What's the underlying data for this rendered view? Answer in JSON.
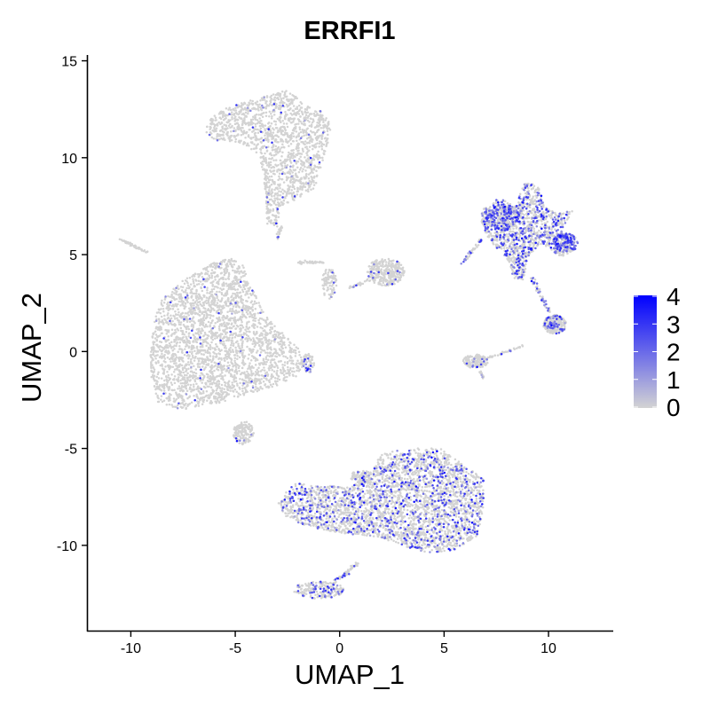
{
  "chart_data": {
    "type": "scatter",
    "title": "ERRFI1",
    "xlabel": "UMAP_1",
    "ylabel": "UMAP_2",
    "xlim": [
      -12.1,
      13.1
    ],
    "ylim": [
      -14.4,
      15.3
    ],
    "xticks": [
      -10,
      -5,
      0,
      5,
      10
    ],
    "yticks": [
      -10,
      -5,
      0,
      5,
      10,
      15
    ],
    "grid": false,
    "legend": {
      "position": "right",
      "title": "",
      "colors": {
        "low": "#d3d3d3",
        "high": "#0000ff"
      },
      "range": [
        0,
        4
      ],
      "ticks": [
        0,
        1,
        2,
        3,
        4
      ]
    },
    "clusters": [
      {
        "shape": "poly",
        "pts": [
          [
            -6.3,
            12.0
          ],
          [
            -6.4,
            11.2
          ],
          [
            -5.9,
            10.9
          ],
          [
            -4.7,
            10.7
          ],
          [
            -3.9,
            10.2
          ],
          [
            -3.6,
            9.0
          ],
          [
            -3.5,
            7.5
          ],
          [
            -3.3,
            6.6
          ],
          [
            -3.0,
            6.4
          ],
          [
            -2.8,
            7.5
          ],
          [
            -2.0,
            7.9
          ],
          [
            -1.2,
            8.4
          ],
          [
            -0.9,
            9.5
          ],
          [
            -0.6,
            10.6
          ],
          [
            -0.4,
            11.7
          ],
          [
            -0.9,
            12.4
          ],
          [
            -1.8,
            12.9
          ],
          [
            -2.5,
            13.5
          ],
          [
            -3.1,
            13.3
          ],
          [
            -4.5,
            12.9
          ],
          [
            -5.6,
            12.5
          ]
        ],
        "n": 1500,
        "expr": 0.05
      },
      {
        "shape": "poly",
        "pts": [
          [
            -9.0,
            1.0
          ],
          [
            -8.6,
            2.6
          ],
          [
            -7.6,
            3.6
          ],
          [
            -6.2,
            4.5
          ],
          [
            -5.2,
            4.9
          ],
          [
            -4.6,
            4.4
          ],
          [
            -4.2,
            3.3
          ],
          [
            -3.5,
            1.8
          ],
          [
            -2.6,
            0.8
          ],
          [
            -1.9,
            0.1
          ],
          [
            -1.7,
            -1.0
          ],
          [
            -2.5,
            -1.6
          ],
          [
            -3.8,
            -2.0
          ],
          [
            -5.5,
            -2.6
          ],
          [
            -7.6,
            -3.0
          ],
          [
            -8.7,
            -2.6
          ],
          [
            -9.1,
            -1.0
          ]
        ],
        "n": 2800,
        "expr": 0.03
      },
      {
        "shape": "poly",
        "pts": [
          [
            -3.0,
            -7.8
          ],
          [
            -2.2,
            -6.8
          ],
          [
            -1.0,
            -6.9
          ],
          [
            0.5,
            -7.0
          ],
          [
            1.6,
            -6.0
          ],
          [
            2.0,
            -5.3
          ],
          [
            3.2,
            -5.0
          ],
          [
            4.8,
            -5.0
          ],
          [
            6.0,
            -5.9
          ],
          [
            6.9,
            -6.6
          ],
          [
            6.9,
            -8.0
          ],
          [
            6.6,
            -9.5
          ],
          [
            5.6,
            -10.2
          ],
          [
            4.3,
            -10.4
          ],
          [
            3.2,
            -10.1
          ],
          [
            2.0,
            -9.6
          ],
          [
            0.3,
            -9.4
          ],
          [
            -1.3,
            -9.1
          ],
          [
            -2.5,
            -8.6
          ]
        ],
        "n": 3200,
        "expr": 0.35
      },
      {
        "shape": "poly",
        "pts": [
          [
            6.8,
            7.3
          ],
          [
            7.6,
            7.9
          ],
          [
            8.5,
            7.6
          ],
          [
            8.8,
            8.7
          ],
          [
            9.5,
            8.6
          ],
          [
            9.8,
            7.5
          ],
          [
            10.4,
            7.1
          ],
          [
            11.2,
            7.3
          ],
          [
            10.7,
            6.3
          ],
          [
            11.3,
            5.3
          ],
          [
            10.6,
            4.8
          ],
          [
            9.7,
            5.6
          ],
          [
            9.0,
            4.9
          ],
          [
            8.8,
            3.7
          ],
          [
            8.3,
            3.8
          ],
          [
            8.0,
            4.8
          ],
          [
            7.3,
            5.6
          ],
          [
            6.8,
            6.4
          ]
        ],
        "n": 1300,
        "expr": 0.5
      },
      {
        "shape": "blob",
        "cx": 7.8,
        "cy": 6.9,
        "rx": 0.8,
        "ry": 0.7,
        "n": 220,
        "expr": 0.85
      },
      {
        "shape": "blob",
        "cx": 10.8,
        "cy": 5.6,
        "rx": 0.6,
        "ry": 0.5,
        "n": 160,
        "expr": 0.8
      },
      {
        "shape": "blob",
        "cx": 10.3,
        "cy": 1.4,
        "rx": 0.55,
        "ry": 0.5,
        "n": 260,
        "expr": 0.45
      },
      {
        "shape": "blob",
        "cx": 2.2,
        "cy": 4.1,
        "rx": 0.9,
        "ry": 0.7,
        "n": 300,
        "expr": 0.05
      },
      {
        "shape": "blob",
        "cx": 6.5,
        "cy": -0.5,
        "rx": 0.6,
        "ry": 0.35,
        "n": 150,
        "expr": 0.1
      },
      {
        "shape": "blob",
        "cx": -1.0,
        "cy": -12.3,
        "rx": 1.2,
        "ry": 0.45,
        "n": 200,
        "expr": 0.3
      },
      {
        "shape": "blob",
        "cx": -0.5,
        "cy": 3.5,
        "rx": 0.35,
        "ry": 0.8,
        "n": 90,
        "expr": 0.05
      },
      {
        "shape": "blob",
        "cx": -4.6,
        "cy": -4.2,
        "rx": 0.5,
        "ry": 0.6,
        "n": 150,
        "expr": 0.05
      },
      {
        "shape": "blob",
        "cx": -1.5,
        "cy": -0.6,
        "rx": 0.3,
        "ry": 0.5,
        "n": 60,
        "expr": 0.4
      },
      {
        "shape": "blob",
        "cx": 1.0,
        "cy": -6.5,
        "rx": 0.5,
        "ry": 0.4,
        "n": 80,
        "expr": 0.1
      },
      {
        "shape": "line",
        "x1": -10.5,
        "y1": 5.8,
        "x2": -9.2,
        "y2": 5.1,
        "n": 50,
        "spread": 0.08,
        "expr": 0.05
      },
      {
        "shape": "line",
        "x1": -2.0,
        "y1": 4.6,
        "x2": -0.8,
        "y2": 4.6,
        "n": 40,
        "spread": 0.12,
        "expr": 0.05
      },
      {
        "shape": "line",
        "x1": 0.5,
        "y1": 3.3,
        "x2": 1.9,
        "y2": 3.9,
        "n": 45,
        "spread": 0.1,
        "expr": 0.1
      },
      {
        "shape": "line",
        "x1": 5.9,
        "y1": 4.6,
        "x2": 6.8,
        "y2": 5.8,
        "n": 45,
        "spread": 0.12,
        "expr": 0.5
      },
      {
        "shape": "line",
        "x1": 9.2,
        "y1": 3.8,
        "x2": 10.1,
        "y2": 1.9,
        "n": 55,
        "spread": 0.12,
        "expr": 0.45
      },
      {
        "shape": "line",
        "x1": 6.9,
        "y1": -0.4,
        "x2": 8.8,
        "y2": 0.3,
        "n": 35,
        "spread": 0.1,
        "expr": 0.2
      },
      {
        "shape": "line",
        "x1": 0.9,
        "y1": -10.9,
        "x2": -0.2,
        "y2": -11.9,
        "n": 60,
        "spread": 0.15,
        "expr": 0.35
      },
      {
        "shape": "line",
        "x1": -3.6,
        "y1": 9.5,
        "x2": -3.4,
        "y2": 6.5,
        "n": 40,
        "spread": 0.1,
        "expr": 0.05
      },
      {
        "shape": "line",
        "x1": -3.0,
        "y1": 5.8,
        "x2": -2.8,
        "y2": 6.5,
        "n": 20,
        "spread": 0.1,
        "expr": 0.05
      },
      {
        "shape": "line",
        "x1": 6.7,
        "y1": -1.0,
        "x2": 6.9,
        "y2": -1.4,
        "n": 15,
        "spread": 0.08,
        "expr": 0.2
      }
    ]
  }
}
